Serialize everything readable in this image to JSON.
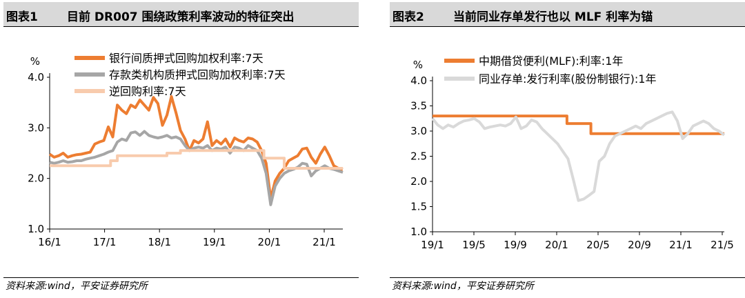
{
  "charts": [
    {
      "figure_no": "图表1",
      "title": "目前 DR007 围绕政策利率波动的特征突出",
      "source": "资料来源:wind，平安证券研究所"
    },
    {
      "figure_no": "图表2",
      "title": "当前同业存单发行也以 MLF 利率为锚",
      "source": "资料来源:wind，平安证券研究所"
    }
  ],
  "chart_data": [
    {
      "type": "line",
      "ylabel": "%",
      "ylim": [
        1.0,
        4.0
      ],
      "yticks": [
        "1.0",
        "2.0",
        "3.0",
        "4.0"
      ],
      "xticks": [
        "16/1",
        "17/1",
        "18/1",
        "19/1",
        "20/1",
        "21/1"
      ],
      "xlim": [
        0,
        65
      ],
      "legend_position": "top",
      "series": [
        {
          "name": "银行间质押式回购加权利率:7天",
          "color": "#ed7d31",
          "x": [
            0,
            1,
            2,
            3,
            4,
            5,
            6,
            7,
            8,
            9,
            10,
            11,
            12,
            13,
            14,
            15,
            16,
            17,
            18,
            19,
            20,
            21,
            22,
            23,
            24,
            25,
            26,
            27,
            28,
            29,
            30,
            31,
            32,
            33,
            34,
            35,
            36,
            37,
            38,
            39,
            40,
            41,
            42,
            43,
            44,
            45,
            46,
            47,
            48,
            49,
            50,
            51,
            52,
            53,
            54,
            55,
            56,
            57,
            58,
            59,
            60,
            61,
            62,
            63,
            64,
            65
          ],
          "values": [
            2.48,
            2.42,
            2.45,
            2.5,
            2.42,
            2.45,
            2.47,
            2.48,
            2.5,
            2.52,
            2.68,
            2.72,
            2.75,
            3.02,
            2.82,
            3.45,
            3.35,
            3.28,
            3.45,
            3.4,
            3.55,
            3.45,
            3.35,
            3.6,
            3.48,
            3.05,
            3.25,
            3.62,
            3.3,
            2.95,
            2.78,
            2.55,
            2.75,
            2.7,
            2.78,
            3.12,
            2.65,
            2.75,
            2.68,
            2.78,
            2.62,
            2.8,
            2.75,
            2.72,
            2.8,
            2.78,
            2.72,
            2.55,
            2.3,
            1.6,
            1.95,
            2.1,
            2.2,
            2.35,
            2.4,
            2.45,
            2.58,
            2.6,
            2.42,
            2.3,
            2.48,
            2.62,
            2.45,
            2.25,
            2.2,
            2.18
          ]
        },
        {
          "name": "存款类机构质押式回购加权利率:7天",
          "color": "#a6a6a6",
          "x": [
            0,
            1,
            2,
            3,
            4,
            5,
            6,
            7,
            8,
            9,
            10,
            11,
            12,
            13,
            14,
            15,
            16,
            17,
            18,
            19,
            20,
            21,
            22,
            23,
            24,
            25,
            26,
            27,
            28,
            29,
            30,
            31,
            32,
            33,
            34,
            35,
            36,
            37,
            38,
            39,
            40,
            41,
            42,
            43,
            44,
            45,
            46,
            47,
            48,
            49,
            50,
            51,
            52,
            53,
            54,
            55,
            56,
            57,
            58,
            59,
            60,
            61,
            62,
            63,
            64,
            65
          ],
          "values": [
            2.32,
            2.3,
            2.32,
            2.35,
            2.32,
            2.33,
            2.35,
            2.35,
            2.38,
            2.4,
            2.42,
            2.45,
            2.48,
            2.52,
            2.55,
            2.72,
            2.78,
            2.75,
            2.9,
            2.92,
            2.85,
            2.93,
            2.85,
            2.82,
            2.8,
            2.82,
            2.85,
            2.8,
            2.82,
            2.78,
            2.65,
            2.55,
            2.6,
            2.62,
            2.6,
            2.65,
            2.55,
            2.6,
            2.58,
            2.62,
            2.5,
            2.62,
            2.6,
            2.55,
            2.65,
            2.6,
            2.55,
            2.4,
            2.1,
            1.48,
            1.85,
            2.0,
            2.1,
            2.15,
            2.18,
            2.22,
            2.3,
            2.28,
            2.05,
            2.15,
            2.2,
            2.25,
            2.2,
            2.18,
            2.15,
            2.12
          ]
        },
        {
          "name": "逆回购利率:7天",
          "color": "#f8cbad",
          "x": [
            0,
            13.5,
            13.5,
            15,
            15,
            26,
            26,
            29,
            29,
            34,
            34,
            47.5,
            47.5,
            52,
            52,
            65
          ],
          "values": [
            2.25,
            2.25,
            2.35,
            2.35,
            2.45,
            2.45,
            2.5,
            2.5,
            2.55,
            2.55,
            2.55,
            2.55,
            2.4,
            2.4,
            2.2,
            2.2
          ]
        }
      ]
    },
    {
      "type": "line",
      "ylabel": "%",
      "ylim": [
        1.0,
        4.0
      ],
      "yticks": [
        "1.0",
        "1.5",
        "2.0",
        "2.5",
        "3.0",
        "3.5",
        "4.0"
      ],
      "xticks": [
        "19/1",
        "19/5",
        "19/9",
        "20/1",
        "20/5",
        "20/9",
        "21/1",
        "21/5"
      ],
      "xlim": [
        0,
        28
      ],
      "legend_position": "top",
      "series": [
        {
          "name": "中期借贷便利(MLF):利率:1年",
          "color": "#ed7d31",
          "x": [
            0,
            12.9,
            12.9,
            15.2,
            15.2,
            28
          ],
          "values": [
            3.3,
            3.3,
            3.15,
            3.15,
            2.95,
            2.95
          ]
        },
        {
          "name": "同业存单:发行利率(股份制银行):1年",
          "color": "#d9d9d9",
          "x": [
            0,
            0.5,
            1,
            1.5,
            2,
            2.5,
            3,
            3.5,
            4,
            4.5,
            5,
            5.5,
            6,
            6.5,
            7,
            7.5,
            8,
            8.5,
            9,
            9.5,
            10,
            10.5,
            11,
            11.5,
            12,
            12.5,
            13,
            13.5,
            14,
            14.5,
            15,
            15.5,
            16,
            16.5,
            17,
            17.5,
            18,
            18.5,
            19,
            19.5,
            20,
            20.5,
            21,
            21.5,
            22,
            22.5,
            23,
            23.5,
            24,
            24.5,
            25,
            25.5,
            26,
            26.5,
            27,
            27.5,
            28
          ],
          "values": [
            3.25,
            3.12,
            3.05,
            3.12,
            3.08,
            3.15,
            3.2,
            3.22,
            3.25,
            3.18,
            3.05,
            3.08,
            3.1,
            3.12,
            3.1,
            3.15,
            3.28,
            3.05,
            3.1,
            3.22,
            3.18,
            3.05,
            2.95,
            2.85,
            2.75,
            2.6,
            2.45,
            2.05,
            1.62,
            1.65,
            1.72,
            1.8,
            2.4,
            2.5,
            2.75,
            2.9,
            2.95,
            3.0,
            3.05,
            3.1,
            3.05,
            3.15,
            3.2,
            3.25,
            3.3,
            3.35,
            3.38,
            3.2,
            2.85,
            2.95,
            3.1,
            3.15,
            3.2,
            3.15,
            3.05,
            3.0,
            2.92
          ]
        }
      ]
    }
  ]
}
